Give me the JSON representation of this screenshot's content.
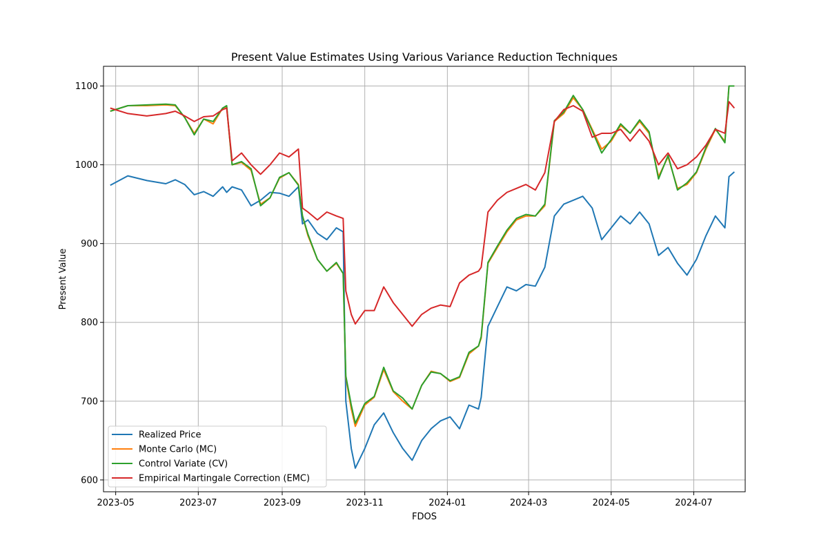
{
  "chart_data": {
    "type": "line",
    "title": "Present Value Estimates Using Various Variance Reduction Techniques",
    "xlabel": "FDOS",
    "ylabel": "Present Value",
    "xlim": [
      "2023-04-22",
      "2024-08-08"
    ],
    "ylim": [
      585,
      1125
    ],
    "grid": true,
    "legend_position": "lower-left",
    "x_ticks": [
      {
        "date": "2023-05-01",
        "label": "2023-05"
      },
      {
        "date": "2023-07-01",
        "label": "2023-07"
      },
      {
        "date": "2023-09-01",
        "label": "2023-09"
      },
      {
        "date": "2023-11-01",
        "label": "2023-11"
      },
      {
        "date": "2024-01-01",
        "label": "2024-01"
      },
      {
        "date": "2024-03-01",
        "label": "2024-03"
      },
      {
        "date": "2024-05-01",
        "label": "2024-05"
      },
      {
        "date": "2024-07-01",
        "label": "2024-07"
      }
    ],
    "y_ticks": [
      {
        "value": 600,
        "label": "600"
      },
      {
        "value": 700,
        "label": "700"
      },
      {
        "value": 800,
        "label": "800"
      },
      {
        "value": 900,
        "label": "900"
      },
      {
        "value": 1000,
        "label": "1000"
      },
      {
        "value": 1100,
        "label": "1100"
      }
    ],
    "x": [
      "2023-04-27",
      "2023-05-10",
      "2023-05-24",
      "2023-06-07",
      "2023-06-14",
      "2023-06-21",
      "2023-06-28",
      "2023-07-05",
      "2023-07-12",
      "2023-07-19",
      "2023-07-22",
      "2023-07-26",
      "2023-08-02",
      "2023-08-09",
      "2023-08-16",
      "2023-08-23",
      "2023-08-30",
      "2023-09-06",
      "2023-09-13",
      "2023-09-16",
      "2023-09-20",
      "2023-09-27",
      "2023-10-04",
      "2023-10-11",
      "2023-10-16",
      "2023-10-18",
      "2023-10-22",
      "2023-10-25",
      "2023-11-01",
      "2023-11-08",
      "2023-11-15",
      "2023-11-22",
      "2023-11-29",
      "2023-12-06",
      "2023-12-13",
      "2023-12-20",
      "2023-12-27",
      "2024-01-03",
      "2024-01-10",
      "2024-01-17",
      "2024-01-24",
      "2024-01-26",
      "2024-01-31",
      "2024-02-07",
      "2024-02-14",
      "2024-02-21",
      "2024-02-28",
      "2024-03-06",
      "2024-03-13",
      "2024-03-20",
      "2024-03-27",
      "2024-04-03",
      "2024-04-10",
      "2024-04-17",
      "2024-04-24",
      "2024-05-01",
      "2024-05-08",
      "2024-05-15",
      "2024-05-22",
      "2024-05-29",
      "2024-06-05",
      "2024-06-12",
      "2024-06-19",
      "2024-06-26",
      "2024-07-03",
      "2024-07-10",
      "2024-07-17",
      "2024-07-24",
      "2024-07-27",
      "2024-07-31"
    ],
    "series": [
      {
        "name": "Realized Price",
        "color": "#1f77b4",
        "values": [
          974,
          986,
          980,
          976,
          981,
          975,
          962,
          966,
          960,
          972,
          965,
          972,
          968,
          948,
          955,
          965,
          964,
          960,
          972,
          925,
          930,
          913,
          905,
          920,
          915,
          700,
          640,
          615,
          640,
          670,
          685,
          660,
          640,
          625,
          650,
          665,
          675,
          680,
          665,
          695,
          690,
          705,
          795,
          820,
          845,
          840,
          848,
          846,
          870,
          935,
          950,
          955,
          960,
          945,
          905,
          920,
          935,
          925,
          940,
          925,
          885,
          895,
          875,
          860,
          880,
          910,
          935,
          920,
          985,
          991
        ]
      },
      {
        "name": "Monte Carlo (MC)",
        "color": "#ff7f0e",
        "values": [
          1068,
          1075,
          1075,
          1076,
          1075,
          1060,
          1040,
          1058,
          1052,
          1072,
          1074,
          1000,
          1003,
          993,
          950,
          958,
          983,
          990,
          975,
          935,
          910,
          880,
          865,
          875,
          862,
          730,
          690,
          668,
          695,
          705,
          740,
          712,
          700,
          690,
          720,
          738,
          735,
          725,
          730,
          760,
          770,
          780,
          875,
          895,
          915,
          930,
          935,
          935,
          948,
          1055,
          1065,
          1085,
          1070,
          1045,
          1020,
          1030,
          1050,
          1040,
          1055,
          1040,
          985,
          1010,
          970,
          975,
          990,
          1020,
          1045,
          1030,
          1100,
          1100
        ]
      },
      {
        "name": "Control Variate (CV)",
        "color": "#2ca02c",
        "values": [
          1068,
          1075,
          1076,
          1077,
          1076,
          1060,
          1038,
          1058,
          1055,
          1072,
          1075,
          1000,
          1004,
          995,
          948,
          958,
          984,
          990,
          974,
          935,
          912,
          880,
          865,
          876,
          862,
          732,
          695,
          672,
          697,
          706,
          743,
          713,
          704,
          690,
          720,
          737,
          735,
          726,
          731,
          762,
          770,
          782,
          876,
          897,
          917,
          932,
          937,
          935,
          950,
          1056,
          1067,
          1088,
          1070,
          1043,
          1015,
          1032,
          1052,
          1040,
          1057,
          1042,
          982,
          1012,
          968,
          977,
          991,
          1022,
          1046,
          1028,
          1100,
          1100
        ]
      },
      {
        "name": "Empirical Martingale Correction (EMC)",
        "color": "#d62728",
        "values": [
          1072,
          1065,
          1062,
          1065,
          1068,
          1062,
          1055,
          1061,
          1062,
          1070,
          1072,
          1005,
          1015,
          1000,
          988,
          1000,
          1015,
          1010,
          1020,
          945,
          940,
          930,
          940,
          935,
          932,
          840,
          810,
          798,
          815,
          815,
          845,
          825,
          810,
          795,
          810,
          818,
          822,
          820,
          850,
          860,
          865,
          870,
          940,
          955,
          965,
          970,
          975,
          968,
          990,
          1055,
          1070,
          1075,
          1068,
          1035,
          1040,
          1040,
          1045,
          1030,
          1045,
          1030,
          1000,
          1015,
          995,
          1000,
          1010,
          1025,
          1045,
          1040,
          1080,
          1072
        ]
      }
    ]
  }
}
